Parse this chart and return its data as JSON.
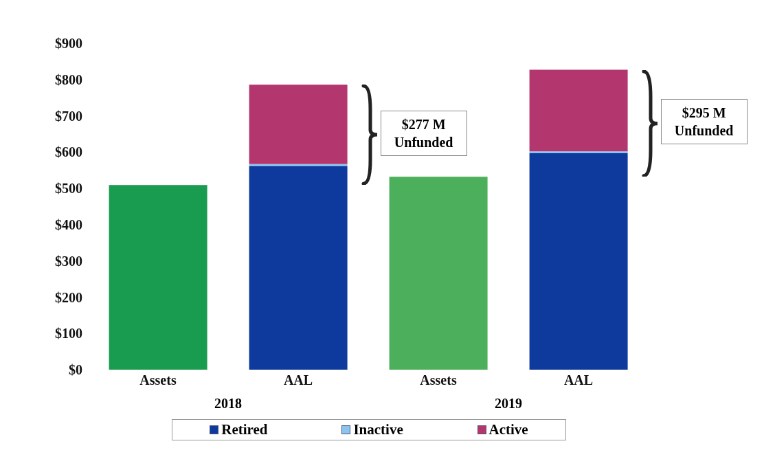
{
  "chart_data": {
    "type": "bar",
    "stacked": true,
    "categories": [
      "Assets",
      "AAL",
      "Assets",
      "AAL"
    ],
    "series": [
      {
        "color": "#1a9c50",
        "colors": [
          "#1a9c50",
          "#1a9c50",
          "#4caf5c",
          "#4caf5c"
        ],
        "values": [
          509,
          null,
          532,
          null
        ]
      },
      {
        "name": "Retired",
        "color": "#0d3a9c",
        "values": [
          null,
          562,
          null,
          597
        ]
      },
      {
        "name": "Inactive",
        "color": "#8cc4f0",
        "values": [
          null,
          5,
          null,
          5
        ]
      },
      {
        "name": "Active",
        "color": "#b3376e",
        "values": [
          null,
          219,
          null,
          225
        ]
      }
    ],
    "ylim": [
      0,
      900
    ],
    "yticks": [
      {
        "value": 0,
        "label": "$0"
      },
      {
        "value": 100,
        "label": "$100"
      },
      {
        "value": 200,
        "label": "$200"
      },
      {
        "value": 300,
        "label": "$300"
      },
      {
        "value": 400,
        "label": "$400"
      },
      {
        "value": 500,
        "label": "$500"
      },
      {
        "value": 600,
        "label": "$600"
      },
      {
        "value": 700,
        "label": "$700"
      },
      {
        "value": 800,
        "label": "$800"
      },
      {
        "value": 900,
        "label": "$900"
      }
    ],
    "annotations": [
      "2018",
      "2019",
      "$277 M\nUnfunded",
      "$295 M\nUnfunded"
    ],
    "legend": "bottom"
  }
}
